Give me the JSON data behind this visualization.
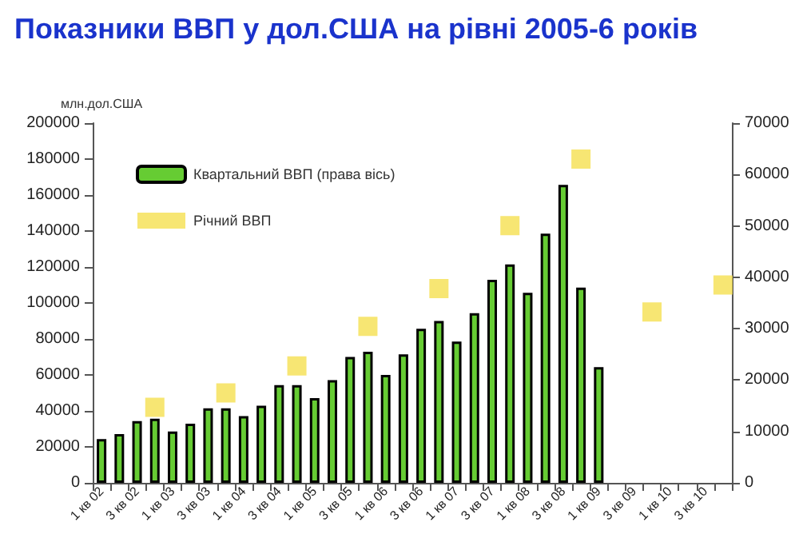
{
  "chart_data": {
    "type": "bar",
    "title": "Показники ВВП у дол.США на рівні 2005-6 років",
    "ylabel": "млн.дол.США",
    "categories": [
      "1 кв 02",
      null,
      "3 кв 02",
      null,
      "1 кв 03",
      null,
      "3 кв 03",
      null,
      "1 кв 04",
      null,
      "3 кв 04",
      null,
      "1 кв 05",
      null,
      "3 кв 05",
      null,
      "1 кв 06",
      null,
      "3 кв 06",
      null,
      "1 кв 07",
      null,
      "3 кв 07",
      null,
      "1 кв 08",
      null,
      "3 кв 08",
      null,
      "1 кв 09",
      null,
      "3 кв 09",
      null,
      "1 кв 10",
      null,
      "3 кв 10",
      null
    ],
    "series": [
      {
        "name": "Квартальний ВВП (права вісь)",
        "axis": "y2",
        "color": "#66cc33",
        "values": [
          8500,
          9500,
          12000,
          12500,
          10000,
          11500,
          14500,
          14500,
          13000,
          15000,
          19000,
          19000,
          16500,
          20000,
          24500,
          25500,
          21000,
          25000,
          30000,
          31500,
          27500,
          33000,
          39500,
          42500,
          37000,
          48500,
          58000,
          38000,
          22500,
          null,
          null,
          null,
          null,
          null,
          null,
          null
        ]
      },
      {
        "name": "Річний ВВП",
        "type": "scatter",
        "marker": "square",
        "color": "#f5e050",
        "values": [
          null,
          null,
          null,
          42000,
          null,
          null,
          null,
          50000,
          null,
          null,
          null,
          65000,
          null,
          null,
          null,
          87000,
          null,
          null,
          null,
          108000,
          null,
          null,
          null,
          143000,
          null,
          null,
          null,
          180000,
          null,
          null,
          null,
          95000,
          null,
          null,
          null,
          110000
        ]
      }
    ],
    "ylim": [
      0,
      200000
    ],
    "yticks": [
      0,
      20000,
      40000,
      60000,
      80000,
      100000,
      120000,
      140000,
      160000,
      180000,
      200000
    ],
    "y2lim": [
      0,
      70000
    ],
    "y2ticks": [
      0,
      10000,
      20000,
      30000,
      40000,
      50000,
      60000,
      70000
    ],
    "legend": "top left",
    "grid": false
  }
}
